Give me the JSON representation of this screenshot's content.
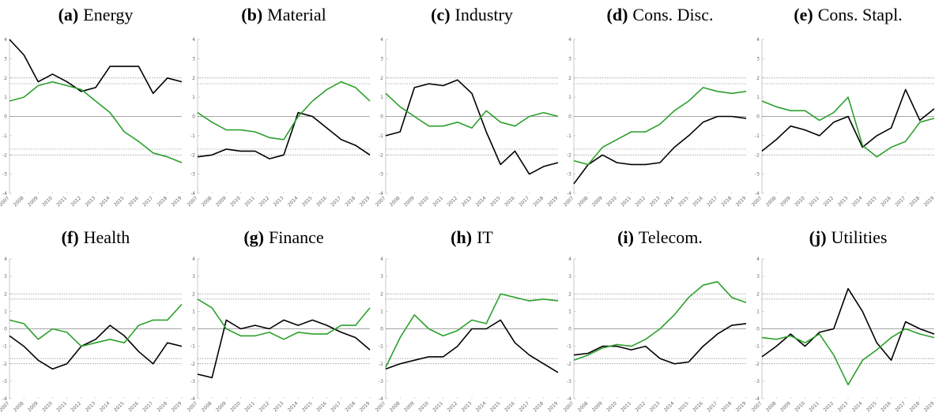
{
  "chart_data": [
    {
      "type": "line",
      "label": "(a)",
      "title": "Energy",
      "x": [
        2007,
        2008,
        2009,
        2010,
        2011,
        2012,
        2013,
        2014,
        2015,
        2016,
        2017,
        2018,
        2019
      ],
      "xlim": [
        2007,
        2019
      ],
      "xticks": [
        2007,
        2008,
        2009,
        2010,
        2011,
        2012,
        2013,
        2014,
        2015,
        2016,
        2017,
        2018,
        2019
      ],
      "ylim": [
        -4,
        4
      ],
      "yticks": [
        -4,
        -3,
        -2,
        -1,
        0,
        1,
        2,
        3,
        4
      ],
      "hlines": [
        0,
        1.7,
        2,
        -1.7,
        -2
      ],
      "series": [
        {
          "color": "#000000",
          "values": [
            4,
            3.2,
            1.8,
            2.2,
            1.8,
            1.3,
            1.5,
            2.6,
            2.6,
            2.6,
            1.2,
            2.0,
            1.8
          ]
        },
        {
          "color": "#2ca02c",
          "values": [
            0.8,
            1.0,
            1.6,
            1.8,
            1.6,
            1.4,
            0.8,
            0.2,
            -0.8,
            -1.3,
            -1.9,
            -2.1,
            -2.4
          ]
        }
      ]
    },
    {
      "type": "line",
      "label": "(b)",
      "title": "Material",
      "x": [
        2007,
        2008,
        2009,
        2010,
        2011,
        2012,
        2013,
        2014,
        2015,
        2016,
        2017,
        2018,
        2019
      ],
      "xlim": [
        2007,
        2019
      ],
      "xticks": [
        2007,
        2008,
        2009,
        2010,
        2011,
        2012,
        2013,
        2014,
        2015,
        2016,
        2017,
        2018,
        2019
      ],
      "ylim": [
        -4,
        4
      ],
      "yticks": [
        -4,
        -3,
        -2,
        -1,
        0,
        1,
        2,
        3,
        4
      ],
      "hlines": [
        0,
        1.7,
        2,
        -1.7,
        -2
      ],
      "series": [
        {
          "color": "#000000",
          "values": [
            -2.1,
            -2.0,
            -1.7,
            -1.8,
            -1.8,
            -2.2,
            -2.0,
            0.2,
            0.0,
            -0.6,
            -1.2,
            -1.5,
            -2.0
          ]
        },
        {
          "color": "#2ca02c",
          "values": [
            0.2,
            -0.3,
            -0.7,
            -0.7,
            -0.8,
            -1.1,
            -1.2,
            0.0,
            0.8,
            1.4,
            1.8,
            1.5,
            0.8
          ]
        }
      ]
    },
    {
      "type": "line",
      "label": "(c)",
      "title": "Industry",
      "x": [
        2007,
        2008,
        2009,
        2010,
        2011,
        2012,
        2013,
        2014,
        2015,
        2016,
        2017,
        2018,
        2019
      ],
      "xlim": [
        2007,
        2019
      ],
      "xticks": [
        2007,
        2008,
        2009,
        2010,
        2011,
        2012,
        2013,
        2014,
        2015,
        2016,
        2017,
        2018,
        2019
      ],
      "ylim": [
        -4,
        4
      ],
      "yticks": [
        -4,
        -3,
        -2,
        -1,
        0,
        1,
        2,
        3,
        4
      ],
      "hlines": [
        0,
        1.7,
        2,
        -1.7,
        -2
      ],
      "series": [
        {
          "color": "#000000",
          "values": [
            -1.0,
            -0.8,
            1.5,
            1.7,
            1.6,
            1.9,
            1.2,
            -0.8,
            -2.5,
            -1.8,
            -3.0,
            -2.6,
            -2.4
          ]
        },
        {
          "color": "#2ca02c",
          "values": [
            1.2,
            0.5,
            0.0,
            -0.5,
            -0.5,
            -0.3,
            -0.6,
            0.3,
            -0.3,
            -0.5,
            0.0,
            0.2,
            0.0
          ]
        }
      ]
    },
    {
      "type": "line",
      "label": "(d)",
      "title": "Cons. Disc.",
      "x": [
        2007,
        2008,
        2009,
        2010,
        2011,
        2012,
        2013,
        2014,
        2015,
        2016,
        2017,
        2018,
        2019
      ],
      "xlim": [
        2007,
        2019
      ],
      "xticks": [
        2007,
        2008,
        2009,
        2010,
        2011,
        2012,
        2013,
        2014,
        2015,
        2016,
        2017,
        2018,
        2019
      ],
      "ylim": [
        -4,
        4
      ],
      "yticks": [
        -4,
        -3,
        -2,
        -1,
        0,
        1,
        2,
        3,
        4
      ],
      "hlines": [
        0,
        1.7,
        2,
        -1.7,
        -2
      ],
      "series": [
        {
          "color": "#000000",
          "values": [
            -3.5,
            -2.5,
            -2.0,
            -2.4,
            -2.5,
            -2.5,
            -2.4,
            -1.6,
            -1.0,
            -0.3,
            0.0,
            0.0,
            -0.1
          ]
        },
        {
          "color": "#2ca02c",
          "values": [
            -2.3,
            -2.5,
            -1.6,
            -1.2,
            -0.8,
            -0.8,
            -0.4,
            0.3,
            0.8,
            1.5,
            1.3,
            1.2,
            1.3
          ]
        }
      ]
    },
    {
      "type": "line",
      "label": "(e)",
      "title": "Cons. Stapl.",
      "x": [
        2007,
        2008,
        2009,
        2010,
        2011,
        2012,
        2013,
        2014,
        2015,
        2016,
        2017,
        2018,
        2019
      ],
      "xlim": [
        2007,
        2019
      ],
      "xticks": [
        2007,
        2008,
        2009,
        2010,
        2011,
        2012,
        2013,
        2014,
        2015,
        2016,
        2017,
        2018,
        2019
      ],
      "ylim": [
        -4,
        4
      ],
      "yticks": [
        -4,
        -3,
        -2,
        -1,
        0,
        1,
        2,
        3,
        4
      ],
      "hlines": [
        0,
        1.7,
        2,
        -1.7,
        -2
      ],
      "series": [
        {
          "color": "#000000",
          "values": [
            -1.8,
            -1.2,
            -0.5,
            -0.7,
            -1.0,
            -0.3,
            0.0,
            -1.6,
            -1.0,
            -0.6,
            1.4,
            -0.2,
            0.4
          ]
        },
        {
          "color": "#2ca02c",
          "values": [
            0.8,
            0.5,
            0.3,
            0.3,
            -0.2,
            0.2,
            1.0,
            -1.5,
            -2.1,
            -1.6,
            -1.3,
            -0.3,
            -0.1
          ]
        }
      ]
    },
    {
      "type": "line",
      "label": "(f)",
      "title": "Health",
      "x": [
        2007,
        2008,
        2009,
        2010,
        2011,
        2012,
        2013,
        2014,
        2015,
        2016,
        2017,
        2018,
        2019
      ],
      "xlim": [
        2007,
        2019
      ],
      "xticks": [
        2007,
        2008,
        2009,
        2010,
        2011,
        2012,
        2013,
        2014,
        2015,
        2016,
        2017,
        2018,
        2019
      ],
      "ylim": [
        -4,
        4
      ],
      "yticks": [
        -4,
        -3,
        -2,
        -1,
        0,
        1,
        2,
        3,
        4
      ],
      "hlines": [
        0,
        1.7,
        2,
        -1.7,
        -2
      ],
      "series": [
        {
          "color": "#000000",
          "values": [
            -0.4,
            -1.0,
            -1.8,
            -2.3,
            -2.0,
            -1.0,
            -0.6,
            0.2,
            -0.4,
            -1.3,
            -2.0,
            -0.8,
            -1.0
          ]
        },
        {
          "color": "#2ca02c",
          "values": [
            0.5,
            0.3,
            -0.6,
            0.0,
            -0.2,
            -1.0,
            -0.8,
            -0.6,
            -0.8,
            0.2,
            0.5,
            0.5,
            1.4
          ]
        }
      ]
    },
    {
      "type": "line",
      "label": "(g)",
      "title": "Finance",
      "x": [
        2007,
        2008,
        2009,
        2010,
        2011,
        2012,
        2013,
        2014,
        2015,
        2016,
        2017,
        2018,
        2019
      ],
      "xlim": [
        2007,
        2019
      ],
      "xticks": [
        2007,
        2008,
        2009,
        2010,
        2011,
        2012,
        2013,
        2014,
        2015,
        2016,
        2017,
        2018,
        2019
      ],
      "ylim": [
        -4,
        4
      ],
      "yticks": [
        -4,
        -3,
        -2,
        -1,
        0,
        1,
        2,
        3,
        4
      ],
      "hlines": [
        0,
        1.7,
        2,
        -1.7,
        -2
      ],
      "series": [
        {
          "color": "#000000",
          "values": [
            -2.6,
            -2.8,
            0.5,
            0.0,
            0.2,
            0.0,
            0.5,
            0.2,
            0.5,
            0.2,
            -0.2,
            -0.5,
            -1.2
          ]
        },
        {
          "color": "#2ca02c",
          "values": [
            1.7,
            1.2,
            0.0,
            -0.4,
            -0.4,
            -0.2,
            -0.6,
            -0.2,
            -0.3,
            -0.3,
            0.2,
            0.2,
            1.2
          ]
        }
      ]
    },
    {
      "type": "line",
      "label": "(h)",
      "title": "IT",
      "x": [
        2007,
        2008,
        2009,
        2010,
        2011,
        2012,
        2013,
        2014,
        2015,
        2016,
        2017,
        2018,
        2019
      ],
      "xlim": [
        2007,
        2019
      ],
      "xticks": [
        2007,
        2008,
        2009,
        2010,
        2011,
        2012,
        2013,
        2014,
        2015,
        2016,
        2017,
        2018,
        2019
      ],
      "ylim": [
        -4,
        4
      ],
      "yticks": [
        -4,
        -3,
        -2,
        -1,
        0,
        1,
        2,
        3,
        4
      ],
      "hlines": [
        0,
        1.7,
        2,
        -1.7,
        -2
      ],
      "series": [
        {
          "color": "#000000",
          "values": [
            -2.3,
            -2.0,
            -1.8,
            -1.6,
            -1.6,
            -1.0,
            0.0,
            0.0,
            0.5,
            -0.8,
            -1.5,
            -2.0,
            -2.5
          ]
        },
        {
          "color": "#2ca02c",
          "values": [
            -2.2,
            -0.5,
            0.8,
            0.0,
            -0.4,
            -0.1,
            0.5,
            0.3,
            2.0,
            1.8,
            1.6,
            1.7,
            1.6
          ]
        }
      ]
    },
    {
      "type": "line",
      "label": "(i)",
      "title": "Telecom.",
      "x": [
        2007,
        2008,
        2009,
        2010,
        2011,
        2012,
        2013,
        2014,
        2015,
        2016,
        2017,
        2018,
        2019
      ],
      "xlim": [
        2007,
        2019
      ],
      "xticks": [
        2007,
        2008,
        2009,
        2010,
        2011,
        2012,
        2013,
        2014,
        2015,
        2016,
        2017,
        2018,
        2019
      ],
      "ylim": [
        -4,
        4
      ],
      "yticks": [
        -4,
        -3,
        -2,
        -1,
        0,
        1,
        2,
        3,
        4
      ],
      "hlines": [
        0,
        1.7,
        2,
        -1.7,
        -2
      ],
      "series": [
        {
          "color": "#000000",
          "values": [
            -1.5,
            -1.4,
            -1.0,
            -1.0,
            -1.2,
            -1.0,
            -1.7,
            -2.0,
            -1.9,
            -1.0,
            -0.3,
            0.2,
            0.3
          ]
        },
        {
          "color": "#2ca02c",
          "values": [
            -1.8,
            -1.5,
            -1.1,
            -0.9,
            -1.0,
            -0.6,
            0.0,
            0.8,
            1.8,
            2.5,
            2.7,
            1.8,
            1.5
          ]
        }
      ]
    },
    {
      "type": "line",
      "label": "(j)",
      "title": "Utilities",
      "x": [
        2007,
        2008,
        2009,
        2010,
        2011,
        2012,
        2013,
        2014,
        2015,
        2016,
        2017,
        2018,
        2019
      ],
      "xlim": [
        2007,
        2019
      ],
      "xticks": [
        2007,
        2008,
        2009,
        2010,
        2011,
        2012,
        2013,
        2014,
        2015,
        2016,
        2017,
        2018,
        2019
      ],
      "ylim": [
        -4,
        4
      ],
      "yticks": [
        -4,
        -3,
        -2,
        -1,
        0,
        1,
        2,
        3,
        4
      ],
      "hlines": [
        0,
        1.7,
        2,
        -1.7,
        -2
      ],
      "series": [
        {
          "color": "#000000",
          "values": [
            -1.6,
            -1.0,
            -0.3,
            -1.0,
            -0.2,
            0.0,
            2.3,
            1.0,
            -0.8,
            -1.8,
            0.4,
            0.0,
            -0.3
          ]
        },
        {
          "color": "#2ca02c",
          "values": [
            -0.5,
            -0.6,
            -0.4,
            -0.8,
            -0.3,
            -1.5,
            -3.2,
            -1.8,
            -1.2,
            -0.5,
            0.0,
            -0.3,
            -0.5
          ]
        }
      ]
    }
  ]
}
